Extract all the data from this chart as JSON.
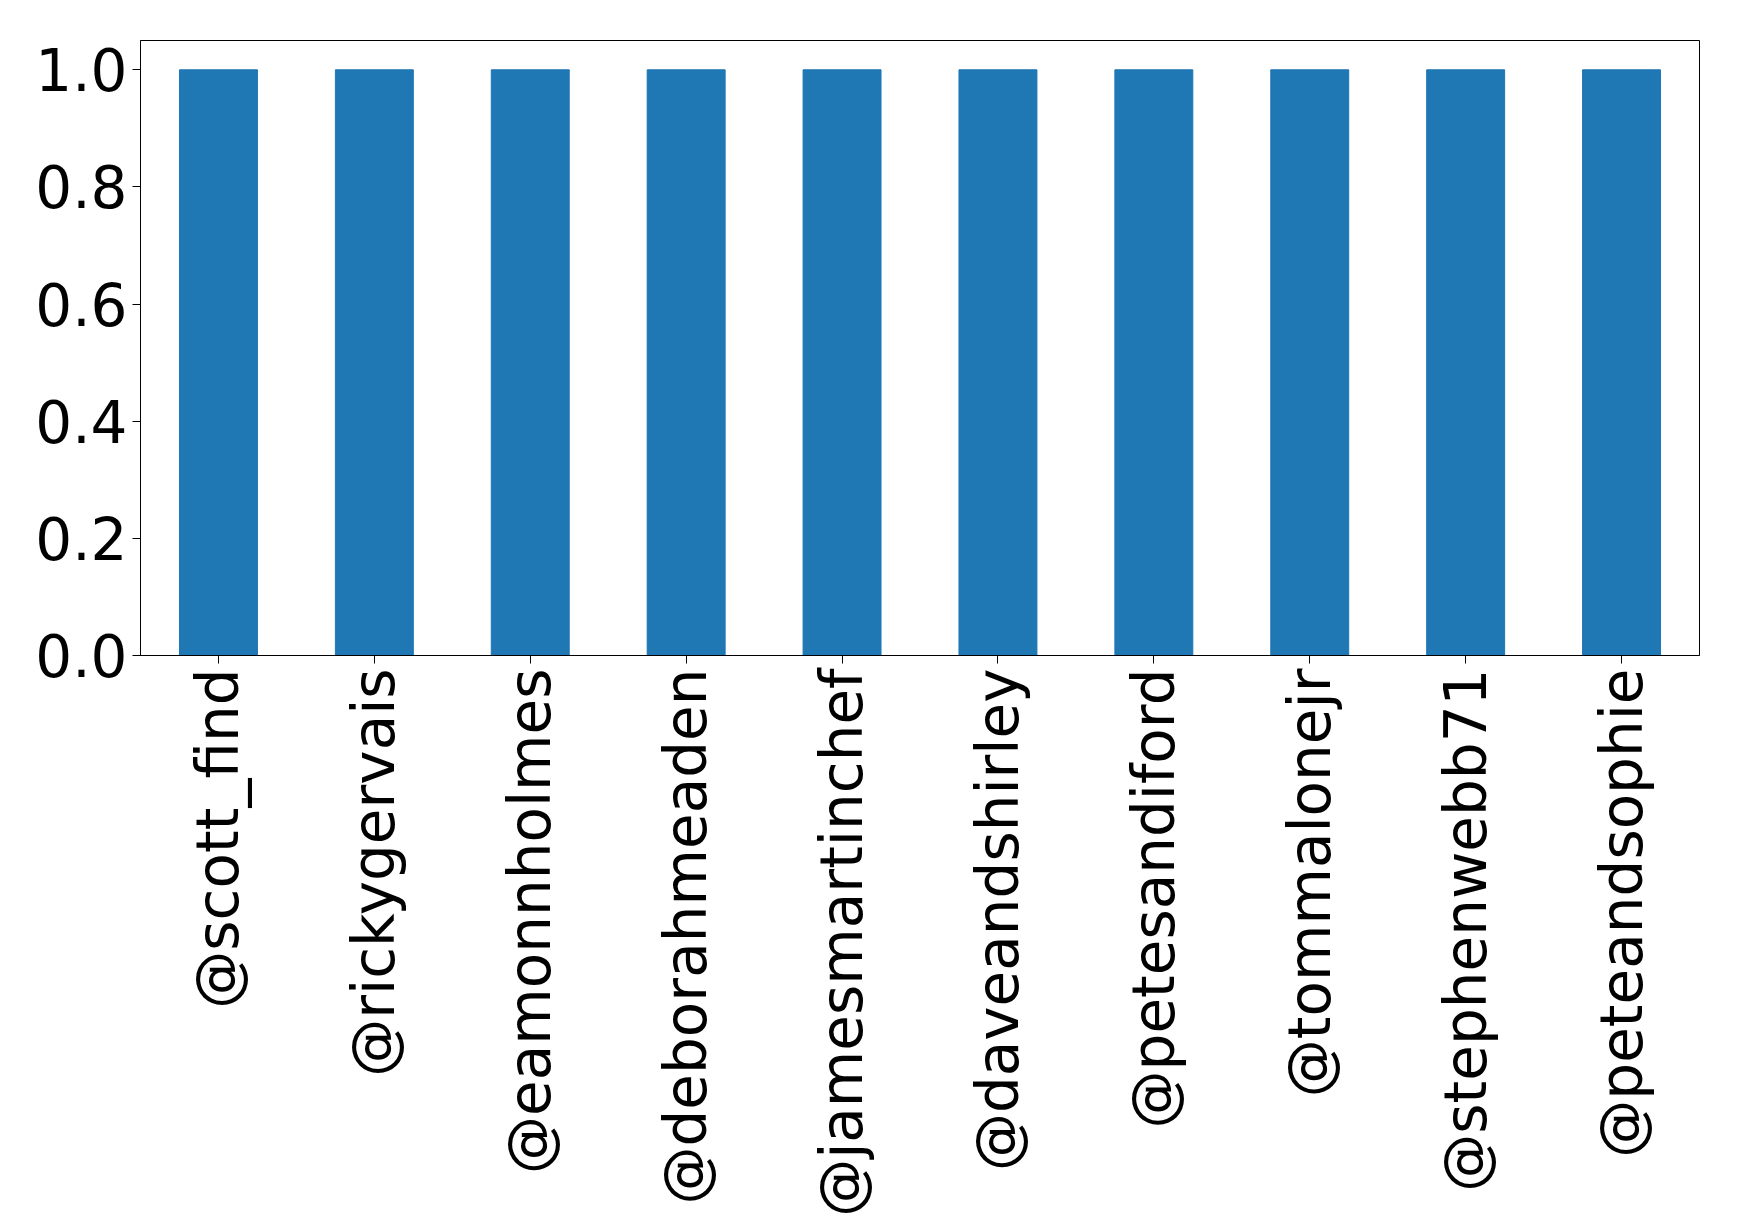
{
  "chart_data": {
    "type": "bar",
    "categories": [
      "@scott_find",
      "@rickygervais",
      "@eamonnholmes",
      "@deborahmeaden",
      "@jamesmartinchef",
      "@daveandshirley",
      "@petesandiford",
      "@tommalonejr",
      "@stephenwebb71",
      "@peteandsophie"
    ],
    "values": [
      1.0,
      1.0,
      1.0,
      1.0,
      1.0,
      1.0,
      1.0,
      1.0,
      1.0,
      1.0
    ],
    "color": "#1f77b4",
    "ylim": [
      0,
      1.05
    ],
    "yticks": [
      {
        "value": 0,
        "label": "0.0"
      },
      {
        "value": 0.2,
        "label": "0.2"
      },
      {
        "value": 0.4,
        "label": "0.4"
      },
      {
        "value": 0.6,
        "label": "0.6"
      },
      {
        "value": 0.8,
        "label": "0.8"
      },
      {
        "value": 1.0,
        "label": "1.0"
      }
    ],
    "grid": false
  }
}
